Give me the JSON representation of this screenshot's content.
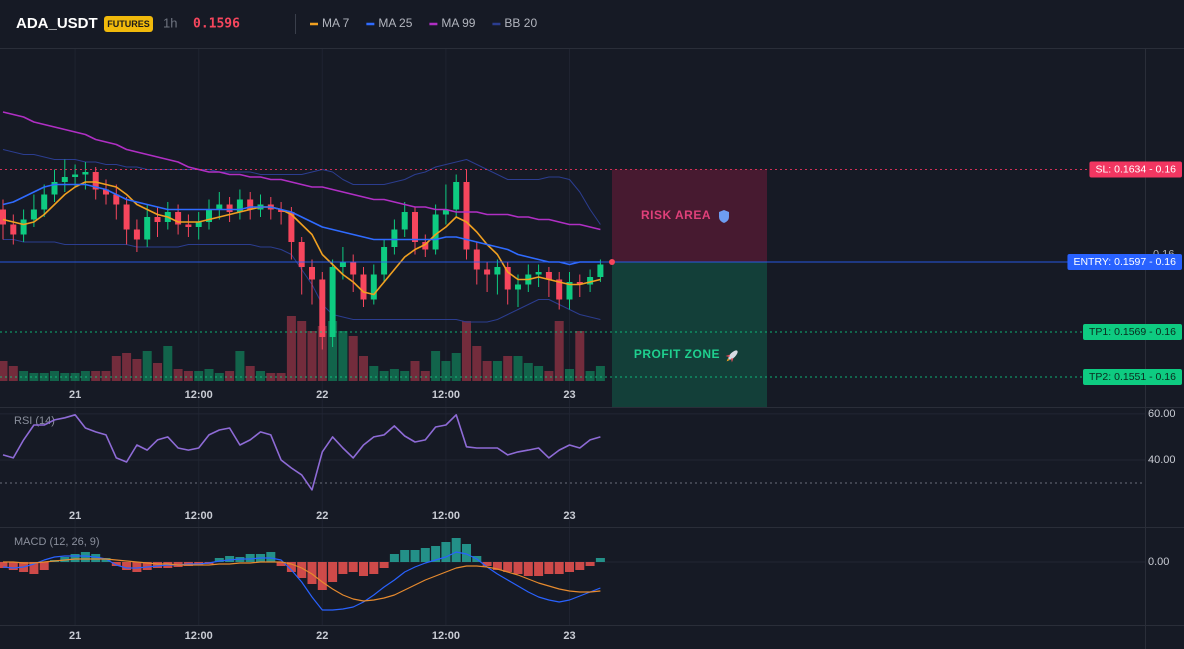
{
  "chart_data": {
    "type": "candlestick",
    "title": "ADA_USDT",
    "badge": "FUTURES",
    "interval": "1h",
    "last_price": 0.1596,
    "up_color": "#0ecb81",
    "down_color": "#f6465d",
    "ylim": [
      0.1539,
      0.1683
    ],
    "yticks": [
      0.16
    ],
    "xticks": [
      {
        "value": 7,
        "label": "21"
      },
      {
        "value": 19,
        "label": "12:00"
      },
      {
        "value": 31,
        "label": "22"
      },
      {
        "value": 43,
        "label": "12:00"
      },
      {
        "value": 55,
        "label": "23"
      }
    ],
    "candles": [
      [
        0.1618,
        0.1622,
        0.1606,
        0.1612
      ],
      [
        0.1612,
        0.1616,
        0.1604,
        0.1608
      ],
      [
        0.1608,
        0.1618,
        0.1605,
        0.1614
      ],
      [
        0.1614,
        0.1624,
        0.1611,
        0.1618
      ],
      [
        0.1618,
        0.1628,
        0.1615,
        0.1624
      ],
      [
        0.1624,
        0.1634,
        0.1621,
        0.1629
      ],
      [
        0.1629,
        0.1638,
        0.1625,
        0.1631
      ],
      [
        0.1631,
        0.1636,
        0.1627,
        0.1632
      ],
      [
        0.1632,
        0.1637,
        0.1626,
        0.1633
      ],
      [
        0.1633,
        0.1635,
        0.1622,
        0.1626
      ],
      [
        0.1626,
        0.163,
        0.162,
        0.1624
      ],
      [
        0.1624,
        0.1628,
        0.1614,
        0.162
      ],
      [
        0.162,
        0.1623,
        0.1604,
        0.161
      ],
      [
        0.161,
        0.1614,
        0.1601,
        0.1606
      ],
      [
        0.1606,
        0.162,
        0.1603,
        0.1615
      ],
      [
        0.1615,
        0.1619,
        0.1607,
        0.1613
      ],
      [
        0.1613,
        0.1621,
        0.161,
        0.1617
      ],
      [
        0.1617,
        0.162,
        0.1608,
        0.1612
      ],
      [
        0.1612,
        0.1616,
        0.1607,
        0.1611
      ],
      [
        0.1611,
        0.1617,
        0.1606,
        0.1613
      ],
      [
        0.1613,
        0.1622,
        0.161,
        0.1618
      ],
      [
        0.1618,
        0.1625,
        0.1614,
        0.162
      ],
      [
        0.162,
        0.1623,
        0.1613,
        0.1617
      ],
      [
        0.1617,
        0.1626,
        0.1614,
        0.1622
      ],
      [
        0.1622,
        0.1625,
        0.1614,
        0.1618
      ],
      [
        0.1618,
        0.1624,
        0.1615,
        0.162
      ],
      [
        0.162,
        0.1623,
        0.1614,
        0.1618
      ],
      [
        0.1618,
        0.1621,
        0.1612,
        0.1617
      ],
      [
        0.1617,
        0.1619,
        0.1598,
        0.1605
      ],
      [
        0.1605,
        0.1607,
        0.1584,
        0.1595
      ],
      [
        0.1595,
        0.1598,
        0.158,
        0.159
      ],
      [
        0.159,
        0.1593,
        0.1562,
        0.1567
      ],
      [
        0.1567,
        0.1598,
        0.1563,
        0.1595
      ],
      [
        0.1595,
        0.1603,
        0.159,
        0.1597
      ],
      [
        0.1597,
        0.16,
        0.1585,
        0.1592
      ],
      [
        0.1592,
        0.1595,
        0.1579,
        0.1582
      ],
      [
        0.1582,
        0.1596,
        0.158,
        0.1592
      ],
      [
        0.1592,
        0.1606,
        0.1589,
        0.1603
      ],
      [
        0.1603,
        0.1614,
        0.16,
        0.161
      ],
      [
        0.161,
        0.1621,
        0.1607,
        0.1617
      ],
      [
        0.1617,
        0.1619,
        0.16,
        0.1605
      ],
      [
        0.1605,
        0.1608,
        0.1599,
        0.1602
      ],
      [
        0.1602,
        0.162,
        0.16,
        0.1616
      ],
      [
        0.1616,
        0.1628,
        0.1612,
        0.1618
      ],
      [
        0.1618,
        0.1632,
        0.1615,
        0.1629
      ],
      [
        0.1629,
        0.1634,
        0.1598,
        0.1602
      ],
      [
        0.1602,
        0.1605,
        0.1588,
        0.1594
      ],
      [
        0.1594,
        0.1597,
        0.1585,
        0.1592
      ],
      [
        0.1592,
        0.1598,
        0.1584,
        0.1595
      ],
      [
        0.1595,
        0.1597,
        0.158,
        0.1586
      ],
      [
        0.1586,
        0.1592,
        0.1579,
        0.1588
      ],
      [
        0.1588,
        0.1596,
        0.1585,
        0.1592
      ],
      [
        0.1592,
        0.1596,
        0.1587,
        0.1593
      ],
      [
        0.1593,
        0.1595,
        0.1583,
        0.159
      ],
      [
        0.159,
        0.1593,
        0.1578,
        0.1582
      ],
      [
        0.1582,
        0.1593,
        0.1578,
        0.1589
      ],
      [
        0.1589,
        0.1592,
        0.1583,
        0.1588
      ],
      [
        0.1588,
        0.1594,
        0.1585,
        0.1591
      ],
      [
        0.1591,
        0.1598,
        0.1589,
        0.1596
      ]
    ],
    "volume_lim": [
      0,
      100
    ],
    "volumes": [
      20,
      15,
      10,
      8,
      8,
      10,
      8,
      8,
      10,
      10,
      10,
      25,
      28,
      22,
      30,
      18,
      35,
      12,
      10,
      10,
      12,
      8,
      10,
      30,
      15,
      10,
      8,
      8,
      65,
      60,
      50,
      55,
      60,
      50,
      45,
      25,
      15,
      10,
      12,
      10,
      20,
      10,
      30,
      20,
      28,
      60,
      35,
      20,
      20,
      25,
      25,
      18,
      15,
      10,
      60,
      12,
      50,
      10,
      15
    ],
    "series": [
      {
        "name": "MA 7",
        "color": "#f0a020",
        "values": [
          0.1614,
          0.1613,
          0.1612,
          0.1613,
          0.1616,
          0.162,
          0.1624,
          0.1627,
          0.1629,
          0.1629,
          0.1628,
          0.1627,
          0.1624,
          0.162,
          0.1618,
          0.1616,
          0.1615,
          0.1613,
          0.1613,
          0.1613,
          0.1614,
          0.1615,
          0.1616,
          0.1617,
          0.1618,
          0.1619,
          0.1619,
          0.1618,
          0.1616,
          0.1612,
          0.1608,
          0.16,
          0.1596,
          0.1592,
          0.1589,
          0.1585,
          0.1584,
          0.1589,
          0.1594,
          0.1599,
          0.1602,
          0.1604,
          0.1608,
          0.1611,
          0.1615,
          0.1613,
          0.1609,
          0.1604,
          0.16,
          0.1593,
          0.159,
          0.159,
          0.1591,
          0.159,
          0.1589,
          0.1588,
          0.1588,
          0.1589,
          0.159
        ]
      },
      {
        "name": "MA 25",
        "color": "#2f6bff",
        "values": [
          0.162,
          0.1621,
          0.1623,
          0.1625,
          0.1627,
          0.1628,
          0.1628,
          0.1628,
          0.1628,
          0.1627,
          0.1626,
          0.1624,
          0.1622,
          0.1621,
          0.162,
          0.1619,
          0.1618,
          0.1618,
          0.1618,
          0.1618,
          0.1618,
          0.1618,
          0.1618,
          0.1618,
          0.1619,
          0.1619,
          0.1619,
          0.1618,
          0.1617,
          0.1615,
          0.1613,
          0.1611,
          0.161,
          0.1609,
          0.1608,
          0.1607,
          0.1606,
          0.1606,
          0.1606,
          0.1606,
          0.1606,
          0.1606,
          0.1606,
          0.1607,
          0.1607,
          0.1606,
          0.1605,
          0.1604,
          0.1603,
          0.1602,
          0.16,
          0.1599,
          0.1598,
          0.1597,
          0.1597,
          0.1596,
          0.1597,
          0.1597,
          0.1597
        ]
      },
      {
        "name": "MA 99",
        "color": "#b02fc4",
        "values": [
          0.1657,
          0.1656,
          0.1655,
          0.1653,
          0.1652,
          0.1651,
          0.165,
          0.1649,
          0.1648,
          0.1646,
          0.1645,
          0.1644,
          0.1642,
          0.1641,
          0.164,
          0.1639,
          0.1638,
          0.1637,
          0.1635,
          0.1634,
          0.1633,
          0.1633,
          0.1632,
          0.1632,
          0.1631,
          0.1631,
          0.163,
          0.163,
          0.1629,
          0.1628,
          0.1627,
          0.1627,
          0.1626,
          0.1625,
          0.1624,
          0.1623,
          0.1622,
          0.1622,
          0.1621,
          0.162,
          0.1619,
          0.1619,
          0.1618,
          0.1618,
          0.1617,
          0.1617,
          0.1617,
          0.1616,
          0.1616,
          0.1616,
          0.1615,
          0.1615,
          0.1614,
          0.1614,
          0.1613,
          0.1612,
          0.1612,
          0.1611,
          0.161
        ]
      },
      {
        "name": "BB 20",
        "color": "#2b3d8f",
        "upper": [
          0.1642,
          0.1641,
          0.164,
          0.164,
          0.1639,
          0.1638,
          0.1638,
          0.1638,
          0.1637,
          0.1637,
          0.1636,
          0.1636,
          0.1635,
          0.1635,
          0.1634,
          0.1634,
          0.1634,
          0.1634,
          0.1634,
          0.1634,
          0.1634,
          0.1633,
          0.1633,
          0.1633,
          0.1633,
          0.1632,
          0.1632,
          0.1632,
          0.1632,
          0.1632,
          0.1633,
          0.1634,
          0.1633,
          0.163,
          0.1628,
          0.1628,
          0.1628,
          0.1628,
          0.1629,
          0.163,
          0.1632,
          0.1633,
          0.1635,
          0.1636,
          0.1637,
          0.1638,
          0.1636,
          0.1634,
          0.1632,
          0.163,
          0.163,
          0.163,
          0.163,
          0.1631,
          0.1631,
          0.163,
          0.1625,
          0.1618,
          0.1612
        ],
        "lower": [
          0.1606,
          0.1606,
          0.1605,
          0.1605,
          0.1605,
          0.1605,
          0.1604,
          0.1604,
          0.1604,
          0.1604,
          0.1604,
          0.1604,
          0.1604,
          0.1603,
          0.1603,
          0.1603,
          0.1603,
          0.1603,
          0.1604,
          0.1604,
          0.1604,
          0.1604,
          0.1604,
          0.1604,
          0.1604,
          0.1603,
          0.1603,
          0.1602,
          0.16,
          0.1594,
          0.1588,
          0.158,
          0.1576,
          0.1575,
          0.1574,
          0.1574,
          0.1574,
          0.1574,
          0.1574,
          0.1574,
          0.1574,
          0.1574,
          0.1574,
          0.1574,
          0.1574,
          0.1573,
          0.1573,
          0.1573,
          0.1574,
          0.1576,
          0.1578,
          0.158,
          0.1582,
          0.1582,
          0.158,
          0.1578,
          0.1576,
          0.1575,
          0.1574
        ]
      }
    ],
    "levels": [
      {
        "value": 0.1634,
        "label": "SL: 0.1634 - 0.16",
        "color": "#f23661"
      },
      {
        "value": 0.1597,
        "label": "ENTRY: 0.1597 - 0.16",
        "color": "#2962ff"
      },
      {
        "value": 0.1569,
        "label": "TP1: 0.1569 - 0.16",
        "color": "#0ecb81"
      },
      {
        "value": 0.1551,
        "label": "TP2: 0.1551 - 0.16",
        "color": "#0ecb81"
      }
    ],
    "zones": {
      "risk": "RISK AREA",
      "profit": "PROFIT ZONE"
    },
    "rsi": {
      "label": "RSI (14)",
      "color": "#8e6bd6",
      "ylim": [
        10.9,
        63
      ],
      "yticks": [
        {
          "value": 60,
          "label": "60.00"
        },
        {
          "value": 40,
          "label": "40.00"
        }
      ],
      "levels": [
        30
      ],
      "values": [
        42.2,
        40.9,
        48.7,
        55.2,
        55.2,
        57.4,
        58.3,
        59.6,
        53.9,
        52.2,
        50.9,
        40.9,
        39.1,
        46.5,
        44.3,
        48.7,
        50.0,
        45.2,
        44.3,
        45.2,
        50.9,
        53.0,
        53.9,
        46.5,
        48.7,
        52.2,
        50.9,
        40.0,
        36.5,
        33.5,
        27.0,
        43.5,
        50.0,
        45.2,
        40.9,
        46.5,
        50.0,
        50.9,
        54.8,
        50.4,
        47.8,
        48.7,
        54.3,
        55.2,
        59.6,
        45.7,
        45.2,
        45.2,
        45.2,
        42.2,
        43.5,
        44.3,
        45.2,
        40.9,
        44.3,
        46.5,
        45.2,
        48.7,
        50.0
      ]
    },
    "macd": {
      "label": "MACD (12, 26, 9)",
      "ylim": [
        -0.000252,
        0.00014
      ],
      "yticks": [
        {
          "value": 0,
          "label": "0.00"
        }
      ],
      "up_color": "#26a69a",
      "down_color": "#ef5350",
      "macd_color": "#2962ff",
      "signal_color": "#e68a2e",
      "histogram": [
        -2.4e-05,
        -3.2e-05,
        -4e-05,
        -4.8e-05,
        -3.2e-05,
        8e-06,
        2e-05,
        3.2e-05,
        4e-05,
        3.2e-05,
        1.6e-05,
        -1.6e-05,
        -3.2e-05,
        -4e-05,
        -3.2e-05,
        -2.4e-05,
        -2.4e-05,
        -2e-05,
        -1.6e-05,
        -1.2e-05,
        -8e-06,
        1.6e-05,
        2.4e-05,
        2e-05,
        3.2e-05,
        3.2e-05,
        4e-05,
        -1.6e-05,
        -4e-05,
        -6.4e-05,
        -8.8e-05,
        -0.000112,
        -8e-05,
        -4.8e-05,
        -4e-05,
        -5.6e-05,
        -4.8e-05,
        -2.4e-05,
        3.2e-05,
        4.8e-05,
        4.8e-05,
        5.6e-05,
        6.4e-05,
        8e-05,
        9.6e-05,
        7.2e-05,
        2.4e-05,
        -1.6e-05,
        -3.2e-05,
        -4e-05,
        -4.8e-05,
        -5.6e-05,
        -5.6e-05,
        -4.8e-05,
        -4.8e-05,
        -4e-05,
        -3.2e-05,
        -1.6e-05,
        1.6e-05
      ],
      "macd": [
        -2e-05,
        -2.4e-05,
        -2e-05,
        -8e-06,
        8e-06,
        2e-05,
        2.4e-05,
        2.4e-05,
        2.4e-05,
        2e-05,
        1.2e-05,
        -1.2e-05,
        -2.4e-05,
        -2.4e-05,
        -2e-05,
        -1.6e-05,
        -1.2e-05,
        -1.2e-05,
        -8e-06,
        -8e-06,
        -4e-06,
        4e-06,
        8e-06,
        1.2e-05,
        1.2e-05,
        1.6e-05,
        1.6e-05,
        8e-06,
        -3.2e-05,
        -8e-05,
        -0.00014,
        -0.000192,
        -0.000192,
        -0.000188,
        -0.00018,
        -0.00016,
        -0.000132,
        -0.0001,
        -7.2e-05,
        -4e-05,
        -2e-05,
        -4e-06,
        8e-06,
        2e-05,
        4e-05,
        3.2e-05,
        1.2e-05,
        -2e-05,
        -4.8e-05,
        -7.2e-05,
        -9.6e-05,
        -0.00012,
        -0.00014,
        -0.000152,
        -0.00016,
        -0.000152,
        -0.000136,
        -0.00012,
        -0.000104
      ],
      "signal": [
        0,
        0,
        -4e-06,
        -4e-06,
        0,
        4e-06,
        8e-06,
        1.2e-05,
        1.2e-05,
        1.2e-05,
        1.2e-05,
        8e-06,
        4e-06,
        0,
        -4e-06,
        -8e-06,
        -8e-06,
        -1.2e-05,
        -1.2e-05,
        -1.2e-05,
        -1.2e-05,
        -8e-06,
        -8e-06,
        -4e-06,
        -4e-06,
        0,
        0,
        0,
        -8e-06,
        -2.4e-05,
        -4.8e-05,
        -8e-05,
        -0.000108,
        -0.000132,
        -0.000148,
        -0.000156,
        -0.000152,
        -0.000144,
        -0.000132,
        -0.000112,
        -9.2e-05,
        -7.2e-05,
        -5.6e-05,
        -4e-05,
        -2.4e-05,
        -1.6e-05,
        -1.6e-05,
        -2e-05,
        -2.8e-05,
        -4e-05,
        -5.2e-05,
        -6.8e-05,
        -8.4e-05,
        -9.6e-05,
        -0.000108,
        -0.000116,
        -0.00012,
        -0.00012,
        -0.000116
      ]
    }
  }
}
